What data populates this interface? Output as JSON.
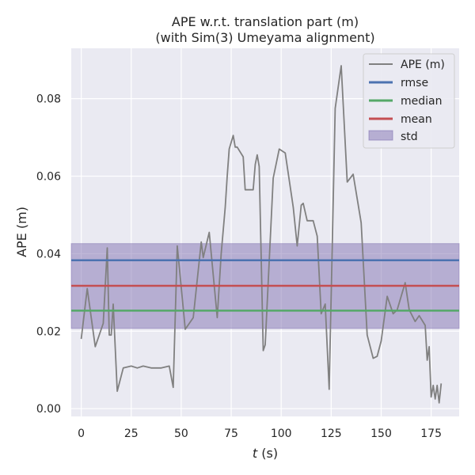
{
  "chart_data": {
    "type": "line",
    "title": "APE w.r.t. translation part (m)",
    "subtitle": "(with Sim(3) Umeyama alignment)",
    "xlabel_var": "t",
    "xlabel_unit": " (s)",
    "ylabel": "APE (m)",
    "xlim": [
      -5,
      189
    ],
    "ylim": [
      -0.002,
      0.093
    ],
    "xticks": [
      0,
      25,
      50,
      75,
      100,
      125,
      150,
      175
    ],
    "yticks": [
      0.0,
      0.02,
      0.04,
      0.06,
      0.08
    ],
    "xtick_labels": [
      "0",
      "25",
      "50",
      "75",
      "100",
      "125",
      "150",
      "175"
    ],
    "ytick_labels": [
      "0.00",
      "0.02",
      "0.04",
      "0.06",
      "0.08"
    ],
    "grid": true,
    "legend_position": "top-right",
    "colors": {
      "background": "#eaeaf2",
      "grid": "#ffffff",
      "ape": "#808080",
      "rmse": "#4c72b0",
      "median": "#55a868",
      "mean": "#c44e52",
      "std": "#8172b2"
    },
    "series": [
      {
        "name": "APE (m)",
        "x": [
          0,
          3,
          7,
          11,
          13,
          14,
          15,
          16,
          18,
          21,
          25,
          28,
          31,
          35,
          40,
          44,
          46,
          48,
          52,
          56,
          60,
          61,
          64,
          68,
          70,
          72,
          73,
          74,
          76,
          77,
          78,
          81,
          82,
          86,
          87,
          88,
          89,
          91,
          92,
          96,
          99,
          102,
          106,
          108,
          110,
          111,
          113,
          116,
          118,
          120,
          122,
          124,
          127,
          130,
          133,
          136,
          140,
          143,
          146,
          148,
          150,
          153,
          156,
          158,
          162,
          164,
          167,
          169,
          172,
          173,
          174,
          175,
          176,
          177,
          178,
          179,
          180
        ],
        "y": [
          0.018,
          0.031,
          0.016,
          0.022,
          0.0415,
          0.019,
          0.019,
          0.027,
          0.0045,
          0.0105,
          0.011,
          0.0105,
          0.011,
          0.0105,
          0.0105,
          0.011,
          0.0055,
          0.042,
          0.0205,
          0.0235,
          0.043,
          0.039,
          0.0455,
          0.0235,
          0.04,
          0.052,
          0.06,
          0.067,
          0.0705,
          0.0675,
          0.0675,
          0.065,
          0.0565,
          0.0565,
          0.063,
          0.0655,
          0.0625,
          0.015,
          0.0165,
          0.0595,
          0.067,
          0.066,
          0.052,
          0.042,
          0.0525,
          0.053,
          0.0485,
          0.0485,
          0.0445,
          0.0245,
          0.027,
          0.005,
          0.0775,
          0.0885,
          0.0585,
          0.0605,
          0.048,
          0.019,
          0.013,
          0.0135,
          0.0175,
          0.029,
          0.0245,
          0.0255,
          0.0325,
          0.0255,
          0.0225,
          0.024,
          0.0215,
          0.0125,
          0.016,
          0.003,
          0.006,
          0.0025,
          0.006,
          0.0015,
          0.0065
        ]
      },
      {
        "name": "rmse",
        "value": 0.0383
      },
      {
        "name": "median",
        "value": 0.0253
      },
      {
        "name": "mean",
        "value": 0.0317
      },
      {
        "name": "std",
        "lower": 0.0207,
        "upper": 0.0426
      }
    ]
  }
}
